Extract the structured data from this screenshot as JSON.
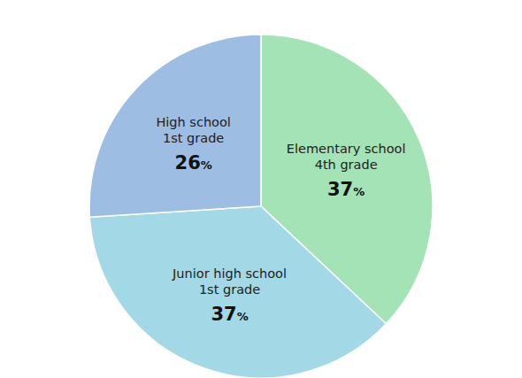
{
  "chart_data": {
    "type": "pie",
    "categories": [
      "Elementary school\n4th grade",
      "Junior high school\n1st grade",
      "High school\n1st grade"
    ],
    "values": [
      37,
      37,
      26
    ],
    "value_labels": [
      "37%",
      "37%",
      "26%"
    ],
    "colors": [
      "#a3e3b6",
      "#a3d8e6",
      "#9dbde2"
    ],
    "data_labels": true
  }
}
